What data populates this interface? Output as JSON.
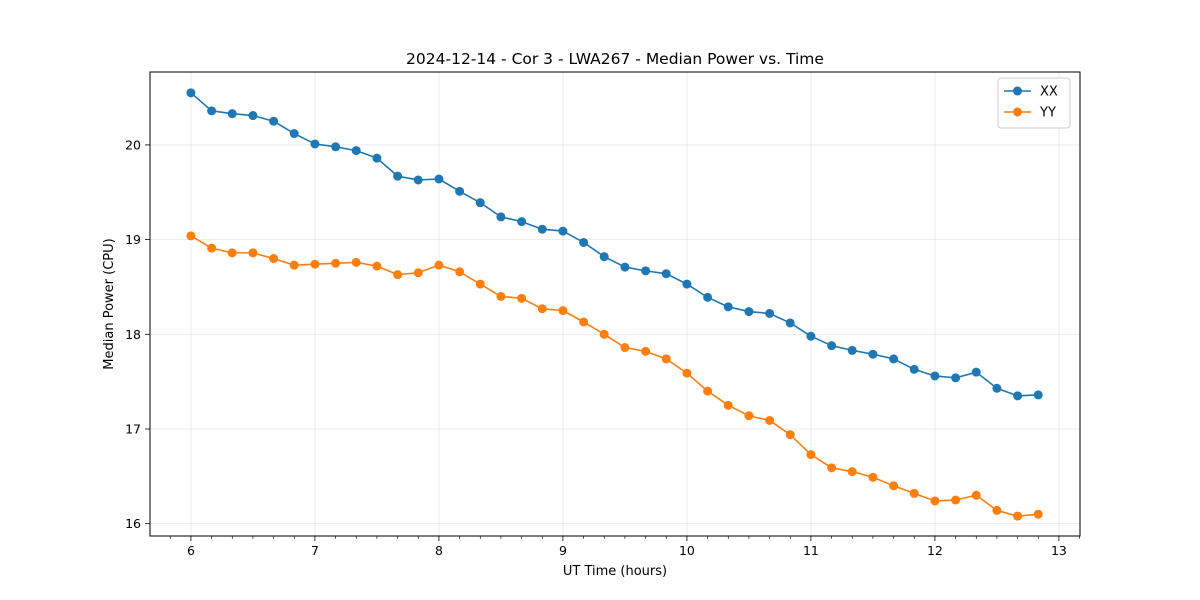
{
  "chart_data": {
    "type": "line",
    "title": "2024-12-14 - Cor 3 - LWA267 - Median Power vs. Time",
    "xlabel": "UT Time (hours)",
    "ylabel": "Median Power (CPU)",
    "xlim": [
      5.67,
      13.17
    ],
    "ylim": [
      15.87,
      20.77
    ],
    "xticks": [
      6,
      7,
      8,
      9,
      10,
      11,
      12,
      13
    ],
    "yticks": [
      16,
      17,
      18,
      19,
      20
    ],
    "grid": true,
    "legend_position": "top-right",
    "x": [
      6.0,
      6.167,
      6.333,
      6.5,
      6.667,
      6.833,
      7.0,
      7.167,
      7.333,
      7.5,
      7.667,
      7.833,
      8.0,
      8.167,
      8.333,
      8.5,
      8.667,
      8.833,
      9.0,
      9.167,
      9.333,
      9.5,
      9.667,
      9.833,
      10.0,
      10.167,
      10.333,
      10.5,
      10.667,
      10.833,
      11.0,
      11.167,
      11.333,
      11.5,
      11.667,
      11.833,
      12.0,
      12.167,
      12.333,
      12.5,
      12.667,
      12.833
    ],
    "series": [
      {
        "name": "XX",
        "color": "#1f77b4",
        "values": [
          20.55,
          20.36,
          20.33,
          20.31,
          20.25,
          20.12,
          20.01,
          19.98,
          19.94,
          19.86,
          19.67,
          19.63,
          19.64,
          19.51,
          19.39,
          19.24,
          19.19,
          19.11,
          19.09,
          18.97,
          18.82,
          18.71,
          18.67,
          18.64,
          18.53,
          18.39,
          18.29,
          18.24,
          18.22,
          18.12,
          17.98,
          17.88,
          17.83,
          17.79,
          17.74,
          17.63,
          17.56,
          17.54,
          17.6,
          17.43,
          17.35,
          17.36
        ]
      },
      {
        "name": "YY",
        "color": "#ff7f0e",
        "values": [
          19.04,
          18.91,
          18.86,
          18.86,
          18.8,
          18.73,
          18.74,
          18.75,
          18.76,
          18.72,
          18.63,
          18.65,
          18.73,
          18.66,
          18.53,
          18.4,
          18.38,
          18.27,
          18.25,
          18.13,
          18.0,
          17.86,
          17.82,
          17.74,
          17.59,
          17.4,
          17.25,
          17.14,
          17.09,
          16.94,
          16.73,
          16.59,
          16.55,
          16.49,
          16.4,
          16.32,
          16.24,
          16.25,
          16.3,
          16.14,
          16.08,
          16.1
        ]
      }
    ]
  }
}
